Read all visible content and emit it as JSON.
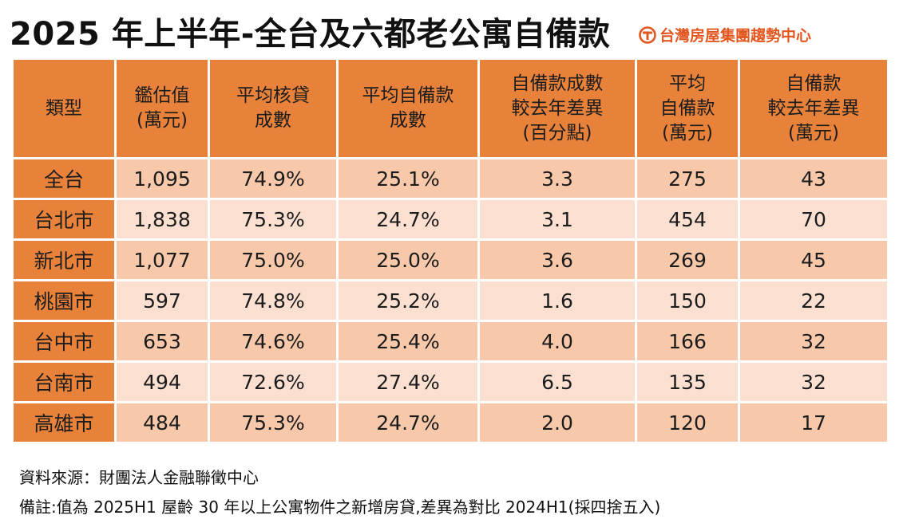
{
  "title": "2025 年上半年-全台及六都老公寓自備款",
  "brand": {
    "name": "台灣房屋集團趨勢中心",
    "icon": "taiwan-realty-logo-icon",
    "color": "#e2571f"
  },
  "colors": {
    "header_bg": "#e8823a",
    "band_dark": "#f7c8aa",
    "band_light": "#fbe0d1",
    "highlight": "#c0312b"
  },
  "chart_data": {
    "type": "table",
    "title": "2025 年上半年-全台及六都老公寓自備款",
    "columns": [
      [
        "類型"
      ],
      [
        "鑑估值",
        "(萬元)"
      ],
      [
        "平均核貸",
        "成數"
      ],
      [
        "平均自備款",
        "成數"
      ],
      [
        "自備款成數",
        "較去年差異",
        "(百分點)"
      ],
      [
        "平均",
        "自備款",
        "(萬元)"
      ],
      [
        "自備款",
        "較去年差異",
        "(萬元)"
      ]
    ],
    "rows": [
      {
        "region": "全台",
        "values": [
          "1,095",
          "74.9%",
          "25.1%",
          "3.3",
          "275",
          "43"
        ],
        "highlight": [
          false,
          false,
          false,
          false,
          false,
          false
        ]
      },
      {
        "region": "台北市",
        "values": [
          "1,838",
          "75.3%",
          "24.7%",
          "3.1",
          "454",
          "70"
        ],
        "highlight": [
          false,
          false,
          false,
          false,
          false,
          true
        ]
      },
      {
        "region": "新北市",
        "values": [
          "1,077",
          "75.0%",
          "25.0%",
          "3.6",
          "269",
          "45"
        ],
        "highlight": [
          false,
          false,
          false,
          false,
          false,
          false
        ]
      },
      {
        "region": "桃園市",
        "values": [
          "597",
          "74.8%",
          "25.2%",
          "1.6",
          "150",
          "22"
        ],
        "highlight": [
          false,
          false,
          false,
          false,
          false,
          false
        ]
      },
      {
        "region": "台中市",
        "values": [
          "653",
          "74.6%",
          "25.4%",
          "4.0",
          "166",
          "32"
        ],
        "highlight": [
          false,
          false,
          false,
          false,
          false,
          false
        ]
      },
      {
        "region": "台南市",
        "values": [
          "494",
          "72.6%",
          "27.4%",
          "6.5",
          "135",
          "32"
        ],
        "highlight": [
          false,
          false,
          true,
          true,
          false,
          false
        ]
      },
      {
        "region": "高雄市",
        "values": [
          "484",
          "75.3%",
          "24.7%",
          "2.0",
          "120",
          "17"
        ],
        "highlight": [
          false,
          false,
          false,
          false,
          false,
          false
        ]
      }
    ]
  },
  "footer": {
    "source": "資料來源：財團法人金融聯徵中心",
    "note": "備註:值為 2025H1 屋齡 30 年以上公寓物件之新增房貸,差異為對比 2024H1(採四捨五入)"
  }
}
